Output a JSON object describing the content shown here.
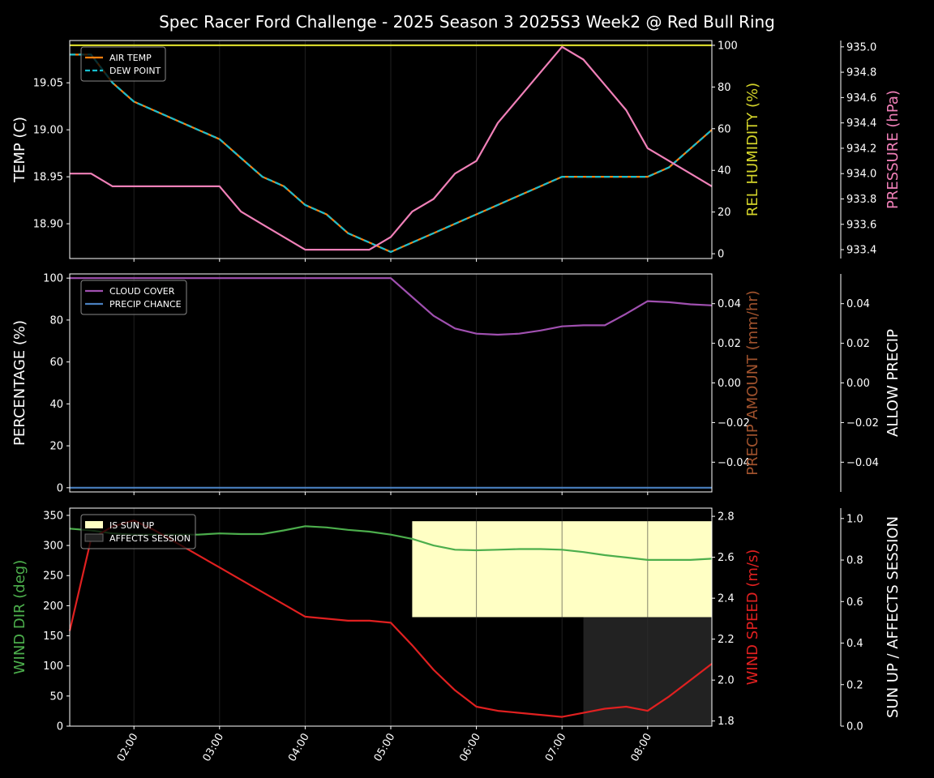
{
  "title": "Spec Racer Ford Challenge - 2025 Season 3 2025S3 Week2 @ Red Bull Ring",
  "colors": {
    "background": "#000000",
    "axis": "#ffffff",
    "grid": "#333333",
    "air_temp": "#ff7f0e",
    "dew_point": "#17becf",
    "humidity": "#d4d42a",
    "pressure": "#f080b8",
    "cloud_cover": "#a050b0",
    "precip_chance": "#4a80c0",
    "precip_amount_label": "#a0522d",
    "wind_dir": "#4cae4c",
    "wind_speed": "#e02020",
    "sun_up": "#ffffc4",
    "affects_session": "#222222"
  },
  "x_ticks": [
    "02:00",
    "03:00",
    "04:00",
    "05:00",
    "06:00",
    "07:00",
    "08:00"
  ],
  "chart_data": [
    {
      "type": "line",
      "name": "temperature-panel",
      "x": [
        1.25,
        1.5,
        1.75,
        2.0,
        2.25,
        2.5,
        2.75,
        3.0,
        3.25,
        3.5,
        3.75,
        4.0,
        4.25,
        4.5,
        4.75,
        5.0,
        5.25,
        5.5,
        5.75,
        6.0,
        6.25,
        6.5,
        6.75,
        7.0,
        7.25,
        7.5,
        7.75,
        8.0,
        8.25,
        8.5,
        8.75
      ],
      "xlim": [
        1.25,
        8.75
      ],
      "ylabel": "TEMP (C)",
      "ylim": [
        18.863,
        19.095
      ],
      "yticks": [
        "18.90",
        "18.95",
        "19.00",
        "19.05"
      ],
      "legend": {
        "placement": "top-left",
        "entries": [
          "AIR TEMP",
          "DEW POINT"
        ]
      },
      "series": [
        {
          "name": "AIR TEMP",
          "axis": "left",
          "values": [
            19.08,
            19.08,
            19.05,
            19.03,
            19.02,
            19.01,
            19.0,
            18.99,
            18.97,
            18.95,
            18.94,
            18.92,
            18.91,
            18.89,
            18.88,
            18.87,
            18.88,
            18.89,
            18.9,
            18.91,
            18.92,
            18.93,
            18.94,
            18.95,
            18.95,
            18.95,
            18.95,
            18.95,
            18.96,
            18.98,
            19.0
          ]
        },
        {
          "name": "DEW POINT",
          "axis": "left",
          "values": [
            19.08,
            19.08,
            19.05,
            19.03,
            19.02,
            19.01,
            19.0,
            18.99,
            18.97,
            18.95,
            18.94,
            18.92,
            18.91,
            18.89,
            18.88,
            18.87,
            18.88,
            18.89,
            18.9,
            18.91,
            18.92,
            18.93,
            18.94,
            18.95,
            18.95,
            18.95,
            18.95,
            18.95,
            18.96,
            18.98,
            19.0
          ]
        },
        {
          "name": "REL HUMIDITY",
          "axis": "right1",
          "values": [
            100,
            100,
            100,
            100,
            100,
            100,
            100,
            100,
            100,
            100,
            100,
            100,
            100,
            100,
            100,
            100,
            100,
            100,
            100,
            100,
            100,
            100,
            100,
            100,
            100,
            100,
            100,
            100,
            100,
            100,
            100
          ]
        },
        {
          "name": "PRESSURE",
          "axis": "right2",
          "values": [
            934.0,
            934.0,
            933.9,
            933.9,
            933.9,
            933.9,
            933.9,
            933.9,
            933.7,
            933.6,
            933.5,
            933.4,
            933.4,
            933.4,
            933.4,
            933.5,
            933.7,
            933.8,
            934.0,
            934.1,
            934.4,
            934.6,
            934.8,
            935.0,
            934.9,
            934.7,
            934.5,
            934.2,
            934.1,
            934.0,
            933.9
          ]
        }
      ],
      "right1": {
        "label": "REL HUMIDITY (%)",
        "ylim": [
          -2.3,
          102.3
        ],
        "ticks": [
          "0",
          "20",
          "40",
          "60",
          "80",
          "100"
        ]
      },
      "right2": {
        "label": "PRESSURE (hPa)",
        "ylim": [
          933.33,
          935.05
        ],
        "ticks": [
          "933.4",
          "933.6",
          "933.8",
          "934.0",
          "934.2",
          "934.4",
          "934.6",
          "934.8",
          "935.0"
        ]
      }
    },
    {
      "type": "line",
      "name": "cloud-precip-panel",
      "x": [
        1.25,
        1.5,
        1.75,
        2.0,
        2.25,
        2.5,
        2.75,
        3.0,
        3.25,
        3.5,
        3.75,
        4.0,
        4.25,
        4.5,
        4.75,
        5.0,
        5.25,
        5.5,
        5.75,
        6.0,
        6.25,
        6.5,
        6.75,
        7.0,
        7.25,
        7.5,
        7.75,
        8.0,
        8.25,
        8.5,
        8.75
      ],
      "xlim": [
        1.25,
        8.75
      ],
      "ylabel": "PERCENTAGE (%)",
      "ylim": [
        -2,
        102
      ],
      "yticks": [
        "0",
        "20",
        "40",
        "60",
        "80",
        "100"
      ],
      "legend": {
        "placement": "top-left",
        "entries": [
          "CLOUD COVER",
          "PRECIP CHANCE"
        ]
      },
      "series": [
        {
          "name": "CLOUD COVER",
          "axis": "left",
          "values": [
            100,
            100,
            100,
            100,
            100,
            100,
            100,
            100,
            100,
            100,
            100,
            100,
            100,
            100,
            100,
            100,
            91,
            82,
            76,
            73.5,
            73,
            73.5,
            75,
            77,
            77.5,
            77.5,
            83,
            89,
            88.5,
            87.5,
            87
          ]
        },
        {
          "name": "PRECIP CHANCE",
          "axis": "left",
          "values": [
            0,
            0,
            0,
            0,
            0,
            0,
            0,
            0,
            0,
            0,
            0,
            0,
            0,
            0,
            0,
            0,
            0,
            0,
            0,
            0,
            0,
            0,
            0,
            0,
            0,
            0,
            0,
            0,
            0,
            0,
            0
          ]
        }
      ],
      "right1": {
        "label": "PRECIP AMOUNT (mm/hr)",
        "ylim": [
          -0.055,
          0.055
        ],
        "ticks": [
          "−0.04",
          "−0.02",
          "0.00",
          "0.02",
          "0.04"
        ]
      },
      "right2": {
        "label": "ALLOW PRECIP",
        "ylim": [
          -0.055,
          0.055
        ],
        "ticks": [
          "−0.04",
          "−0.02",
          "0.00",
          "0.02",
          "0.04"
        ]
      }
    },
    {
      "type": "line",
      "name": "wind-panel",
      "x": [
        1.25,
        1.5,
        1.75,
        2.0,
        2.25,
        2.5,
        2.75,
        3.0,
        3.25,
        3.5,
        3.75,
        4.0,
        4.25,
        4.5,
        4.75,
        5.0,
        5.25,
        5.5,
        5.75,
        6.0,
        6.25,
        6.5,
        6.75,
        7.0,
        7.25,
        7.5,
        7.75,
        8.0,
        8.25,
        8.5,
        8.75
      ],
      "xlim": [
        1.25,
        8.75
      ],
      "ylabel": "WIND DIR (deg)",
      "ylim": [
        0,
        362
      ],
      "yticks": [
        "0",
        "50",
        "100",
        "150",
        "200",
        "250",
        "300",
        "350"
      ],
      "legend": {
        "placement": "top-left",
        "entries": [
          "IS SUN UP",
          "AFFECTS SESSION"
        ]
      },
      "series": [
        {
          "name": "WIND DIR",
          "axis": "left",
          "values": [
            328,
            325,
            320,
            318,
            318,
            318,
            318,
            320,
            319,
            319,
            325,
            332,
            330,
            326,
            323,
            318,
            311,
            300,
            293,
            292,
            293,
            294,
            294,
            293,
            289,
            284,
            280,
            276,
            276,
            276,
            278
          ]
        },
        {
          "name": "WIND SPEED",
          "axis": "right1",
          "values": [
            2.24,
            2.69,
            2.75,
            2.78,
            2.73,
            2.67,
            2.61,
            2.55,
            2.49,
            2.43,
            2.37,
            2.31,
            2.3,
            2.29,
            2.29,
            2.28,
            2.17,
            2.05,
            1.95,
            1.87,
            1.85,
            1.84,
            1.83,
            1.82,
            1.84,
            1.86,
            1.87,
            1.85,
            1.92,
            2.0,
            2.08
          ]
        }
      ],
      "spans": [
        {
          "name": "IS SUN UP",
          "x_start": 5.25,
          "x_end": 8.75,
          "y_bottom": 0.5,
          "y_top": 0.94
        },
        {
          "name": "AFFECTS SESSION",
          "x_start": 7.25,
          "x_end": 8.75,
          "y_bottom": 0.0,
          "y_top": 0.5
        }
      ],
      "right1": {
        "label": "WIND SPEED (m/s)",
        "ylim": [
          1.775,
          2.84
        ],
        "ticks": [
          "1.8",
          "2.0",
          "2.2",
          "2.4",
          "2.6",
          "2.8"
        ]
      },
      "right2": {
        "label": "SUN UP / AFFECTS SESSION",
        "ylim": [
          0,
          1.05
        ],
        "ticks": [
          "0.0",
          "0.2",
          "0.4",
          "0.6",
          "0.8",
          "1.0"
        ]
      }
    }
  ]
}
